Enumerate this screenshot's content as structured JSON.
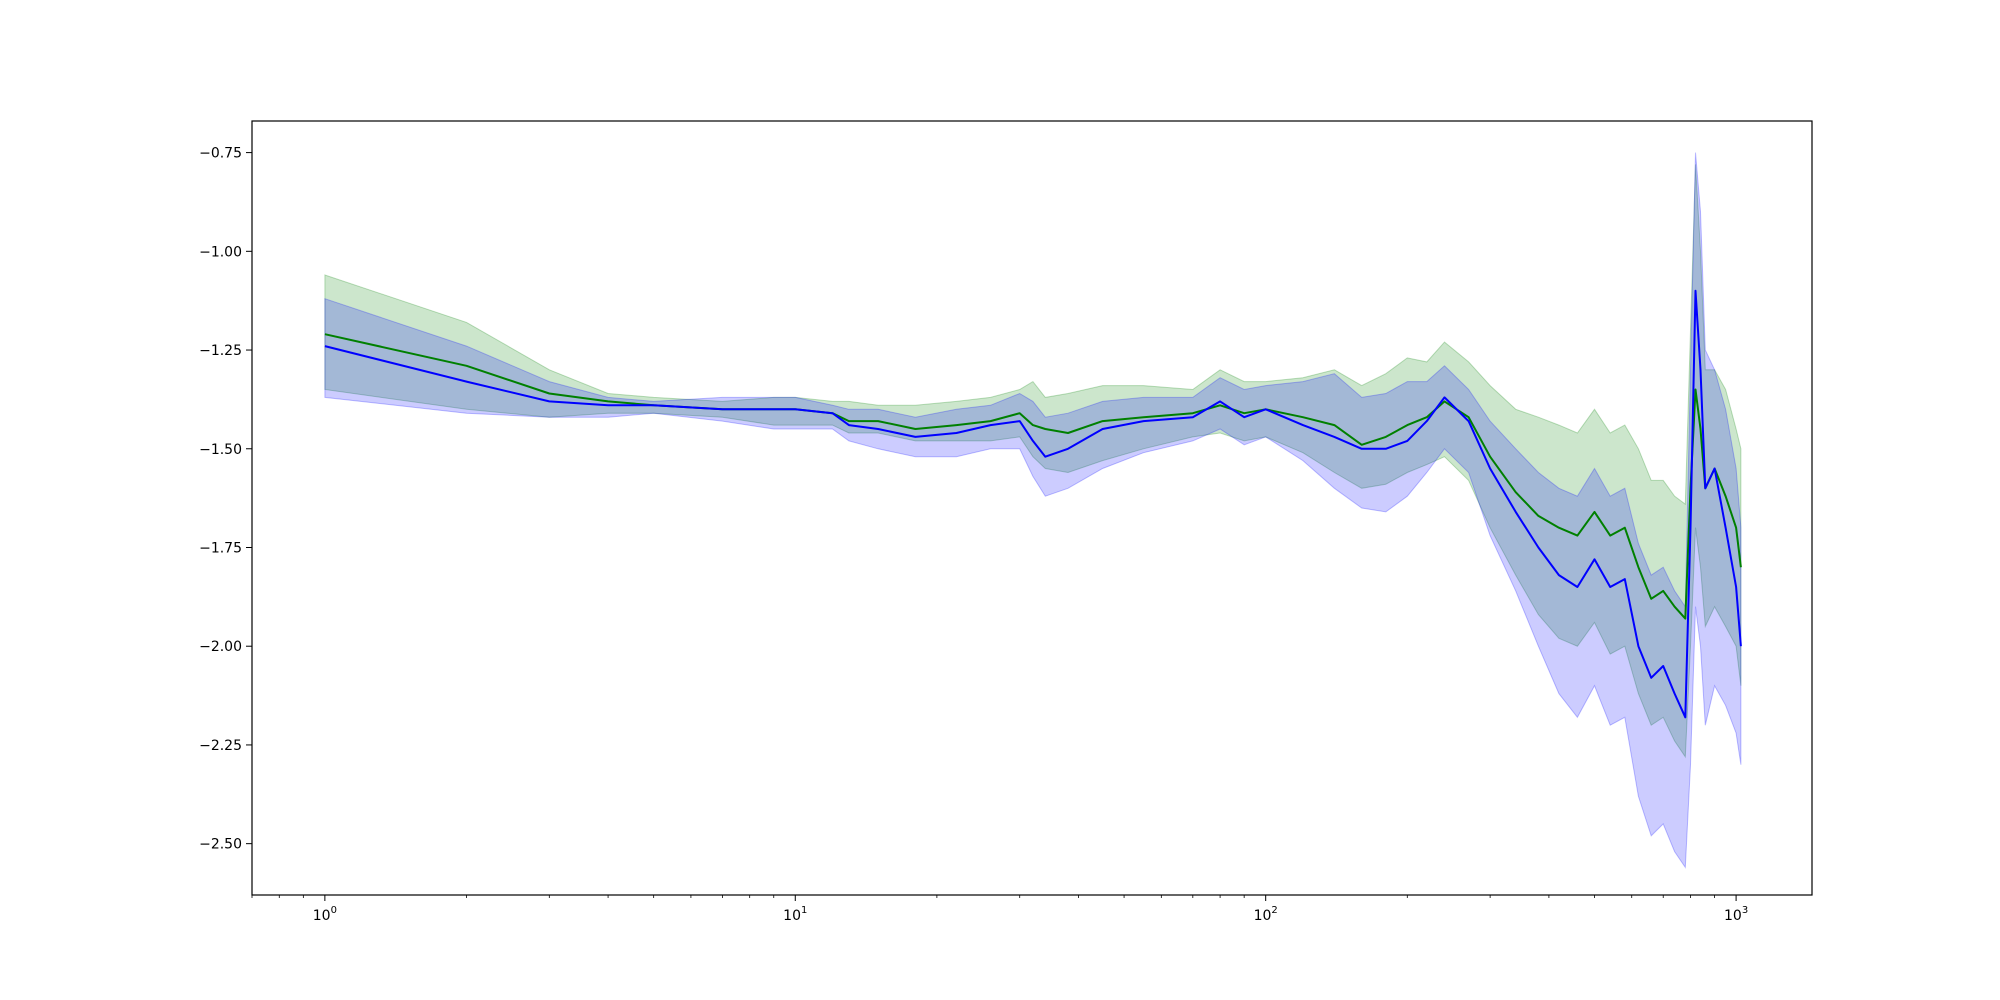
{
  "chart_data": {
    "type": "line",
    "title": "",
    "xlabel": "",
    "ylabel": "",
    "xscale": "log",
    "xlim": [
      0.7,
      1450
    ],
    "ylim": [
      -2.63,
      -0.67
    ],
    "grid": false,
    "legend": "none",
    "x_ticks": [
      {
        "value": 1,
        "base": "10",
        "exp": "0"
      },
      {
        "value": 10,
        "base": "10",
        "exp": "1"
      },
      {
        "value": 100,
        "base": "10",
        "exp": "2"
      },
      {
        "value": 1000,
        "base": "10",
        "exp": "3"
      }
    ],
    "y_ticks": [
      {
        "value": -0.75,
        "label": "−0.75"
      },
      {
        "value": -1.0,
        "label": "−1.00"
      },
      {
        "value": -1.25,
        "label": "−1.25"
      },
      {
        "value": -1.5,
        "label": "−1.50"
      },
      {
        "value": -1.75,
        "label": "−1.75"
      },
      {
        "value": -2.0,
        "label": "−2.00"
      },
      {
        "value": -2.25,
        "label": "−2.25"
      },
      {
        "value": -2.5,
        "label": "−2.50"
      }
    ],
    "series": [
      {
        "color": "#008000",
        "band_color": "#008000",
        "band_opacity": 0.2,
        "x": [
          1,
          2,
          3,
          4,
          5,
          7,
          9,
          10,
          12,
          13,
          15,
          18,
          22,
          26,
          30,
          32,
          34,
          38,
          45,
          55,
          70,
          80,
          90,
          100,
          120,
          140,
          160,
          180,
          200,
          220,
          240,
          270,
          300,
          340,
          380,
          420,
          460,
          500,
          540,
          580,
          620,
          660,
          700,
          740,
          780,
          800,
          820,
          840,
          860,
          900,
          950,
          1000,
          1024
        ],
        "y": [
          -1.21,
          -1.29,
          -1.36,
          -1.38,
          -1.39,
          -1.4,
          -1.4,
          -1.4,
          -1.41,
          -1.43,
          -1.43,
          -1.45,
          -1.44,
          -1.43,
          -1.41,
          -1.44,
          -1.45,
          -1.46,
          -1.43,
          -1.42,
          -1.41,
          -1.39,
          -1.41,
          -1.4,
          -1.42,
          -1.44,
          -1.49,
          -1.47,
          -1.44,
          -1.42,
          -1.38,
          -1.42,
          -1.52,
          -1.61,
          -1.67,
          -1.7,
          -1.72,
          -1.66,
          -1.72,
          -1.7,
          -1.8,
          -1.88,
          -1.86,
          -1.9,
          -1.93,
          -1.6,
          -1.35,
          -1.45,
          -1.6,
          -1.55,
          -1.62,
          -1.7,
          -1.8
        ],
        "upper": [
          -1.06,
          -1.18,
          -1.3,
          -1.36,
          -1.37,
          -1.38,
          -1.37,
          -1.37,
          -1.38,
          -1.38,
          -1.39,
          -1.39,
          -1.38,
          -1.37,
          -1.35,
          -1.33,
          -1.37,
          -1.36,
          -1.34,
          -1.34,
          -1.35,
          -1.3,
          -1.33,
          -1.33,
          -1.32,
          -1.3,
          -1.34,
          -1.31,
          -1.27,
          -1.28,
          -1.23,
          -1.28,
          -1.34,
          -1.4,
          -1.42,
          -1.44,
          -1.46,
          -1.4,
          -1.46,
          -1.44,
          -1.5,
          -1.58,
          -1.58,
          -1.62,
          -1.64,
          -1.2,
          -0.78,
          -1.0,
          -1.3,
          -1.3,
          -1.35,
          -1.45,
          -1.5
        ],
        "lower": [
          -1.35,
          -1.4,
          -1.42,
          -1.41,
          -1.41,
          -1.42,
          -1.44,
          -1.44,
          -1.44,
          -1.46,
          -1.46,
          -1.48,
          -1.48,
          -1.48,
          -1.47,
          -1.52,
          -1.55,
          -1.56,
          -1.53,
          -1.5,
          -1.47,
          -1.46,
          -1.48,
          -1.47,
          -1.51,
          -1.56,
          -1.6,
          -1.59,
          -1.56,
          -1.54,
          -1.52,
          -1.58,
          -1.7,
          -1.82,
          -1.92,
          -1.98,
          -2.0,
          -1.94,
          -2.02,
          -2.0,
          -2.12,
          -2.2,
          -2.18,
          -2.24,
          -2.28,
          -2.0,
          -1.7,
          -1.8,
          -1.95,
          -1.9,
          -1.95,
          -2.0,
          -2.1
        ]
      },
      {
        "color": "#0000ff",
        "band_color": "#0000ff",
        "band_opacity": 0.2,
        "x": [
          1,
          2,
          3,
          4,
          5,
          7,
          9,
          10,
          12,
          13,
          15,
          18,
          22,
          26,
          30,
          32,
          34,
          38,
          45,
          55,
          70,
          80,
          90,
          100,
          120,
          140,
          160,
          180,
          200,
          220,
          240,
          270,
          300,
          340,
          380,
          420,
          460,
          500,
          540,
          580,
          620,
          660,
          700,
          740,
          780,
          800,
          820,
          840,
          860,
          900,
          950,
          1000,
          1024
        ],
        "y": [
          -1.24,
          -1.33,
          -1.38,
          -1.39,
          -1.39,
          -1.4,
          -1.4,
          -1.4,
          -1.41,
          -1.44,
          -1.45,
          -1.47,
          -1.46,
          -1.44,
          -1.43,
          -1.48,
          -1.52,
          -1.5,
          -1.45,
          -1.43,
          -1.42,
          -1.38,
          -1.42,
          -1.4,
          -1.44,
          -1.47,
          -1.5,
          -1.5,
          -1.48,
          -1.43,
          -1.37,
          -1.43,
          -1.55,
          -1.66,
          -1.75,
          -1.82,
          -1.85,
          -1.78,
          -1.85,
          -1.83,
          -2.0,
          -2.08,
          -2.05,
          -2.12,
          -2.18,
          -1.7,
          -1.1,
          -1.3,
          -1.6,
          -1.55,
          -1.7,
          -1.85,
          -2.0
        ],
        "upper": [
          -1.12,
          -1.24,
          -1.33,
          -1.37,
          -1.38,
          -1.37,
          -1.37,
          -1.37,
          -1.39,
          -1.4,
          -1.4,
          -1.42,
          -1.4,
          -1.39,
          -1.36,
          -1.38,
          -1.42,
          -1.41,
          -1.38,
          -1.37,
          -1.37,
          -1.32,
          -1.35,
          -1.34,
          -1.33,
          -1.31,
          -1.37,
          -1.36,
          -1.33,
          -1.33,
          -1.29,
          -1.35,
          -1.43,
          -1.5,
          -1.56,
          -1.6,
          -1.62,
          -1.55,
          -1.62,
          -1.6,
          -1.74,
          -1.82,
          -1.8,
          -1.86,
          -1.9,
          -1.3,
          -0.75,
          -0.9,
          -1.25,
          -1.3,
          -1.4,
          -1.55,
          -1.7
        ],
        "lower": [
          -1.37,
          -1.41,
          -1.42,
          -1.42,
          -1.41,
          -1.43,
          -1.45,
          -1.45,
          -1.45,
          -1.48,
          -1.5,
          -1.52,
          -1.52,
          -1.5,
          -1.5,
          -1.57,
          -1.62,
          -1.6,
          -1.55,
          -1.51,
          -1.48,
          -1.45,
          -1.49,
          -1.47,
          -1.53,
          -1.6,
          -1.65,
          -1.66,
          -1.62,
          -1.56,
          -1.5,
          -1.56,
          -1.72,
          -1.86,
          -2.0,
          -2.12,
          -2.18,
          -2.1,
          -2.2,
          -2.18,
          -2.38,
          -2.48,
          -2.45,
          -2.52,
          -2.56,
          -2.3,
          -1.9,
          -2.0,
          -2.2,
          -2.1,
          -2.15,
          -2.22,
          -2.3
        ]
      }
    ]
  }
}
